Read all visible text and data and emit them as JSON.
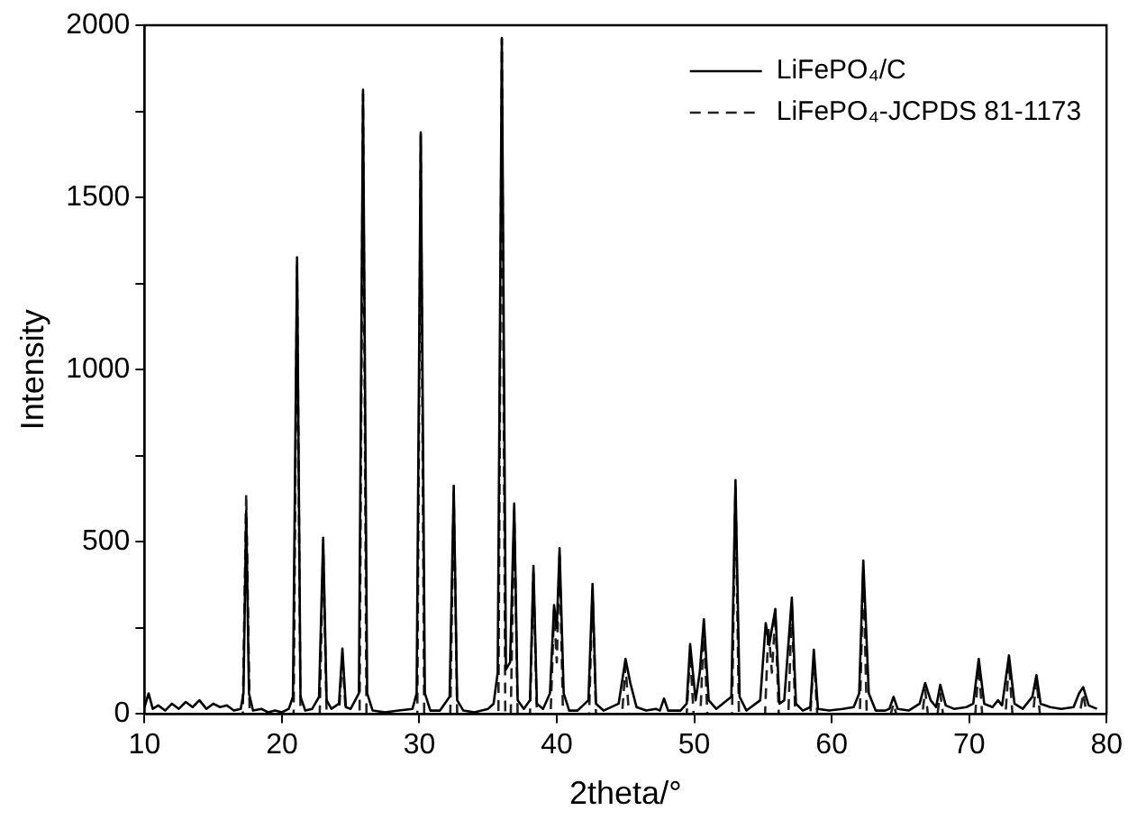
{
  "chart_data": {
    "type": "line",
    "xlabel": "2theta/°",
    "ylabel": "Intensity",
    "xlim": [
      10,
      80
    ],
    "xticks": [
      10,
      20,
      30,
      40,
      50,
      60,
      70,
      80
    ],
    "ylim": [
      0,
      2000
    ],
    "yticks": [
      0,
      {
        "value": 250,
        "label": null
      },
      500,
      {
        "value": 750,
        "label": null
      },
      1000,
      {
        "value": 1250,
        "label": null
      },
      1500,
      {
        "value": 1750,
        "label": null
      },
      2000
    ],
    "grid": false,
    "legend": "top right",
    "marker": "none",
    "series": [
      {
        "name": "LiFePO₄/C",
        "color": "#000000",
        "line_style": "solid",
        "x": [
          10,
          10.3,
          10.6,
          11,
          11.5,
          12,
          12.5,
          13,
          13.5,
          14,
          14.5,
          15,
          15.5,
          16,
          16.5,
          17,
          17.2,
          17.4,
          17.6,
          17.9,
          18.5,
          19,
          19.5,
          20,
          20.5,
          20.8,
          21.1,
          21.35,
          21.7,
          22.2,
          22.7,
          23.0,
          23.25,
          23.6,
          24.15,
          24.4,
          24.65,
          25.0,
          25.6,
          25.9,
          26.2,
          26.6,
          27.5,
          28.5,
          29.5,
          29.8,
          30.1,
          30.4,
          30.8,
          31.5,
          32.2,
          32.5,
          32.75,
          33.2,
          34,
          35,
          35.4,
          35.7,
          36.0,
          36.3,
          36.6,
          36.9,
          37.15,
          37.6,
          38.05,
          38.3,
          38.55,
          39,
          39.5,
          39.8,
          40.0,
          40.2,
          40.5,
          40.9,
          41.5,
          42.3,
          42.6,
          42.85,
          43.4,
          44.5,
          45.0,
          45.35,
          45.8,
          46.5,
          47.2,
          47.5,
          47.8,
          48.1,
          49,
          49.45,
          49.7,
          50.1,
          50.4,
          50.7,
          51.05,
          51.6,
          52.7,
          53.0,
          53.3,
          53.8,
          54.8,
          55.2,
          55.45,
          55.9,
          56.2,
          56.55,
          57.1,
          57.4,
          57.9,
          58.45,
          58.7,
          59.0,
          59.8,
          60.8,
          61.6,
          62.0,
          62.3,
          62.7,
          63.2,
          63.9,
          64.2,
          64.5,
          64.8,
          65.6,
          66.4,
          66.8,
          67.2,
          67.6,
          67.9,
          68.3,
          68.9,
          69.8,
          70.3,
          70.7,
          71.1,
          71.7,
          72.1,
          72.4,
          72.9,
          73.3,
          73.9,
          74.6,
          74.9,
          75.2,
          75.9,
          76.7,
          77.6,
          78.0,
          78.3,
          78.7,
          79.3
        ],
        "values": [
          20,
          60,
          15,
          25,
          10,
          30,
          15,
          35,
          20,
          40,
          15,
          30,
          20,
          25,
          10,
          15,
          60,
          590,
          60,
          10,
          15,
          5,
          10,
          5,
          15,
          50,
          1326,
          50,
          10,
          15,
          50,
          512,
          40,
          15,
          30,
          190,
          20,
          15,
          60,
          1813,
          60,
          10,
          5,
          10,
          15,
          60,
          1689,
          60,
          10,
          10,
          50,
          663,
          40,
          10,
          5,
          15,
          30,
          120,
          1963,
          130,
          150,
          611,
          40,
          15,
          40,
          430,
          30,
          15,
          60,
          316,
          250,
          482,
          60,
          10,
          10,
          40,
          378,
          30,
          10,
          30,
          160,
          90,
          20,
          10,
          15,
          10,
          45,
          10,
          10,
          30,
          203,
          40,
          120,
          275,
          40,
          15,
          50,
          679,
          50,
          10,
          40,
          264,
          200,
          305,
          30,
          40,
          338,
          30,
          10,
          20,
          187,
          15,
          10,
          15,
          20,
          60,
          446,
          60,
          10,
          10,
          15,
          50,
          15,
          10,
          30,
          90,
          40,
          20,
          85,
          25,
          15,
          20,
          30,
          160,
          30,
          20,
          40,
          25,
          170,
          30,
          15,
          50,
          113,
          30,
          20,
          15,
          20,
          60,
          78,
          25,
          15
        ]
      },
      {
        "name": "LiFePO₄-JCPDS 81-1173",
        "color": "#222222",
        "line_style": "dashed",
        "x": [
          10,
          17.15,
          17.4,
          17.65,
          20.85,
          21.1,
          21.35,
          22.75,
          23.0,
          23.25,
          24.15,
          24.4,
          24.65,
          25.65,
          25.9,
          26.15,
          29.85,
          30.1,
          30.35,
          32.25,
          32.5,
          32.75,
          35.75,
          36.0,
          36.25,
          36.65,
          36.9,
          37.15,
          38.05,
          38.3,
          38.55,
          39.55,
          39.8,
          40.0,
          40.2,
          40.45,
          42.35,
          42.6,
          42.85,
          44.75,
          45.0,
          45.25,
          49.45,
          49.7,
          49.95,
          50.45,
          50.7,
          50.95,
          52.75,
          53.0,
          53.25,
          55.15,
          55.4,
          55.65,
          55.9,
          56.15,
          56.85,
          57.1,
          57.35,
          58.45,
          58.7,
          58.95,
          62.05,
          62.3,
          62.55,
          64.3,
          64.5,
          64.7,
          66.6,
          66.8,
          67.0,
          67.7,
          67.9,
          68.1,
          70.45,
          70.7,
          70.95,
          72.65,
          72.9,
          73.15,
          74.65,
          74.9,
          75.15,
          78.05,
          78.3,
          78.55,
          80
        ],
        "values": [
          0,
          0,
          640,
          0,
          0,
          1300,
          0,
          0,
          490,
          0,
          0,
          170,
          0,
          0,
          1800,
          0,
          0,
          1680,
          0,
          0,
          640,
          0,
          0,
          1960,
          0,
          0,
          590,
          0,
          0,
          410,
          0,
          0,
          300,
          150,
          460,
          0,
          0,
          360,
          0,
          0,
          140,
          0,
          0,
          180,
          0,
          0,
          250,
          0,
          0,
          660,
          0,
          0,
          250,
          120,
          290,
          0,
          0,
          320,
          0,
          0,
          170,
          0,
          0,
          420,
          0,
          0,
          30,
          0,
          0,
          70,
          0,
          0,
          60,
          0,
          0,
          140,
          0,
          0,
          150,
          0,
          0,
          100,
          0,
          0,
          60,
          0,
          0
        ]
      }
    ]
  }
}
